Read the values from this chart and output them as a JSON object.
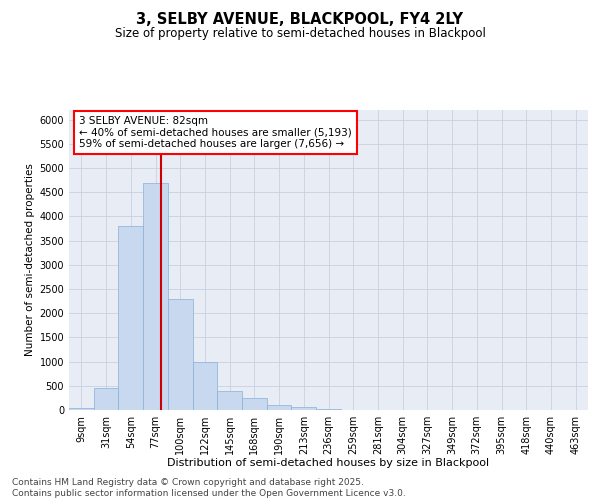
{
  "title": "3, SELBY AVENUE, BLACKPOOL, FY4 2LY",
  "subtitle": "Size of property relative to semi-detached houses in Blackpool",
  "xlabel": "Distribution of semi-detached houses by size in Blackpool",
  "ylabel": "Number of semi-detached properties",
  "footnote": "Contains HM Land Registry data © Crown copyright and database right 2025.\nContains public sector information licensed under the Open Government Licence v3.0.",
  "bin_labels": [
    "9sqm",
    "31sqm",
    "54sqm",
    "77sqm",
    "100sqm",
    "122sqm",
    "145sqm",
    "168sqm",
    "190sqm",
    "213sqm",
    "236sqm",
    "259sqm",
    "281sqm",
    "304sqm",
    "327sqm",
    "349sqm",
    "372sqm",
    "395sqm",
    "418sqm",
    "440sqm",
    "463sqm"
  ],
  "bar_values": [
    50,
    450,
    3800,
    4700,
    2300,
    1000,
    400,
    240,
    100,
    70,
    20,
    5,
    0,
    0,
    0,
    0,
    0,
    0,
    0,
    0,
    0
  ],
  "bar_color": "#c8d8ee",
  "bar_edge_color": "#8ab0d8",
  "bar_edge_width": 0.5,
  "vline_color": "#cc0000",
  "vline_linewidth": 1.5,
  "vline_position": 3.22,
  "annotation_text": "3 SELBY AVENUE: 82sqm\n← 40% of semi-detached houses are smaller (5,193)\n59% of semi-detached houses are larger (7,656) →",
  "ylim": [
    0,
    6200
  ],
  "yticks": [
    0,
    500,
    1000,
    1500,
    2000,
    2500,
    3000,
    3500,
    4000,
    4500,
    5000,
    5500,
    6000
  ],
  "grid_color": "#c8d0e0",
  "bg_color": "#e8ecf4",
  "title_fontsize": 10.5,
  "subtitle_fontsize": 8.5,
  "xlabel_fontsize": 8,
  "ylabel_fontsize": 7.5,
  "tick_fontsize": 7,
  "annot_fontsize": 7.5,
  "footnote_fontsize": 6.5
}
